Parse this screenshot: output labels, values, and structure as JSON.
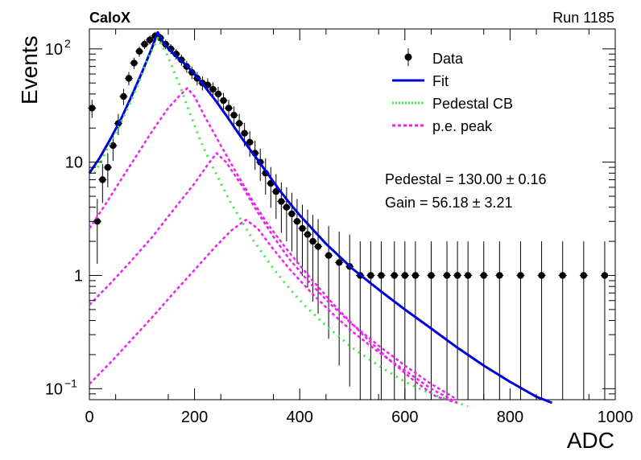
{
  "chart_data": {
    "type": "scatter",
    "header_left": "CaloX",
    "header_right": "Run 1185",
    "xlabel": "ADC",
    "ylabel": "Events",
    "xlim": [
      0,
      1000
    ],
    "ylim": [
      0.08,
      150
    ],
    "yscale": "log",
    "grid": false,
    "legend_position": "top-right",
    "x_ticks": [
      {
        "value": 0,
        "label": "0"
      },
      {
        "value": 200,
        "label": "200"
      },
      {
        "value": 400,
        "label": "400"
      },
      {
        "value": 600,
        "label": "600"
      },
      {
        "value": 800,
        "label": "800"
      },
      {
        "value": 1000,
        "label": "1000"
      }
    ],
    "y_ticks": [
      {
        "value": 0.1,
        "base": "10",
        "exp": "−1"
      },
      {
        "value": 1,
        "base": "1",
        "exp": ""
      },
      {
        "value": 10,
        "base": "10",
        "exp": ""
      },
      {
        "value": 100,
        "base": "10",
        "exp": "2"
      }
    ],
    "fit_results": [
      "Pedestal = 130.00 ± 0.16",
      "Gain = 56.18 ± 3.21"
    ],
    "series": [
      {
        "name": "Data",
        "kind": "points",
        "color": "#000000",
        "x": [
          5,
          15,
          25,
          35,
          45,
          55,
          65,
          75,
          85,
          95,
          105,
          115,
          125,
          135,
          145,
          155,
          165,
          175,
          185,
          195,
          205,
          215,
          225,
          235,
          245,
          255,
          265,
          275,
          285,
          295,
          305,
          315,
          325,
          335,
          345,
          355,
          365,
          375,
          385,
          395,
          405,
          415,
          425,
          435,
          455,
          475,
          495,
          515,
          535,
          555,
          580,
          600,
          620,
          650,
          680,
          700,
          720,
          750,
          780,
          820,
          860,
          900,
          940,
          980
        ],
        "y": [
          30,
          3,
          7,
          9,
          14,
          22,
          38,
          55,
          75,
          95,
          110,
          120,
          130,
          125,
          110,
          100,
          90,
          80,
          70,
          62,
          55,
          50,
          48,
          44,
          40,
          35,
          30,
          26,
          22,
          18,
          15,
          12,
          10,
          8,
          6.5,
          5.5,
          4.5,
          4,
          3.5,
          3,
          2.6,
          2.3,
          2,
          1.8,
          1.5,
          1.3,
          1.2,
          1,
          1,
          1,
          1,
          1,
          1,
          1,
          1,
          1,
          1,
          1,
          1,
          1,
          1,
          1,
          1,
          1
        ]
      },
      {
        "name": "Fit",
        "kind": "line",
        "color": "#0000dd",
        "x": [
          0,
          20,
          40,
          60,
          80,
          100,
          120,
          130,
          140,
          160,
          180,
          200,
          220,
          240,
          260,
          280,
          300,
          320,
          340,
          360,
          380,
          400,
          450,
          500,
          550,
          600,
          650,
          700,
          750,
          800,
          850,
          880
        ],
        "y": [
          8,
          11,
          16,
          24,
          38,
          62,
          105,
          140,
          115,
          90,
          75,
          60,
          46,
          35,
          26,
          19,
          14,
          10.5,
          7.8,
          5.8,
          4.4,
          3.4,
          1.9,
          1.15,
          0.75,
          0.5,
          0.34,
          0.23,
          0.16,
          0.115,
          0.085,
          0.075
        ]
      },
      {
        "name": "Pedestal CB",
        "kind": "dotted",
        "color": "#33ee33",
        "x": [
          10,
          30,
          50,
          70,
          90,
          110,
          130,
          150,
          170,
          190,
          210,
          230,
          250,
          270,
          290,
          310,
          330,
          350,
          370,
          390,
          410,
          450,
          500,
          550,
          600,
          650,
          700,
          720
        ],
        "y": [
          8,
          12,
          18,
          28,
          45,
          80,
          125,
          85,
          50,
          28,
          16,
          10,
          6.5,
          4.3,
          3,
          2.1,
          1.55,
          1.15,
          0.88,
          0.68,
          0.54,
          0.36,
          0.23,
          0.16,
          0.115,
          0.09,
          0.075,
          0.07
        ]
      },
      {
        "name": "p.e. peak",
        "kind": "dashed",
        "color": "#ee22ee",
        "x": [
          0,
          30,
          60,
          90,
          120,
          150,
          170,
          186,
          200,
          220,
          250,
          280,
          310,
          340,
          380,
          420,
          470,
          520,
          570,
          620,
          660,
          700
        ],
        "y": [
          2.6,
          4.2,
          7,
          11.5,
          19,
          30,
          38,
          45,
          38,
          25,
          14,
          8,
          4.6,
          2.8,
          1.6,
          0.95,
          0.52,
          0.3,
          0.18,
          0.115,
          0.085,
          0.075
        ]
      },
      {
        "name": "",
        "kind": "dashed",
        "color": "#ee22ee",
        "x": [
          0,
          40,
          80,
          120,
          160,
          200,
          225,
          242,
          260,
          290,
          320,
          350,
          380,
          420,
          460,
          500,
          550,
          600,
          650,
          700
        ],
        "y": [
          0.55,
          0.85,
          1.35,
          2.2,
          3.8,
          6.5,
          9.5,
          12,
          10,
          6.2,
          3.6,
          2.2,
          1.4,
          0.85,
          0.55,
          0.37,
          0.24,
          0.16,
          0.11,
          0.08
        ]
      },
      {
        "name": "",
        "kind": "dashed",
        "color": "#ee22ee",
        "x": [
          0,
          40,
          80,
          120,
          160,
          200,
          240,
          270,
          298,
          320,
          350,
          380,
          420,
          460,
          500,
          550,
          600,
          650,
          700
        ],
        "y": [
          0.11,
          0.17,
          0.27,
          0.43,
          0.7,
          1.12,
          1.8,
          2.5,
          3.1,
          2.6,
          1.7,
          1.15,
          0.72,
          0.47,
          0.32,
          0.21,
          0.145,
          0.1,
          0.075
        ]
      }
    ]
  }
}
